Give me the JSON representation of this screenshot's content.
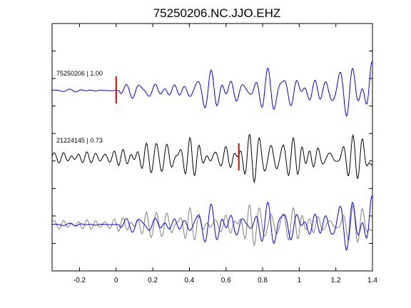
{
  "chart_data": {
    "type": "line",
    "title": "75250206.NC.JJO.EHZ",
    "xlabel": "",
    "ylabel": "",
    "xlim": [
      -0.35,
      1.4
    ],
    "xticks": [
      -0.2,
      0,
      0.2,
      0.4,
      0.6,
      0.8,
      1,
      1.2,
      1.4
    ],
    "xtick_labels": [
      "-0.2",
      "0",
      "0.2",
      "0.4",
      "0.6",
      "0.8",
      "1",
      "1.2",
      "1.4"
    ],
    "y_ticks_unlabeled": 8,
    "grid": false,
    "traces": [
      {
        "label": "75250206 | 1.00",
        "color": "#0000ff",
        "pick_time": 0.0
      },
      {
        "label": "21224145 | 0.73",
        "color": "#000000",
        "pick_time": 0.67
      }
    ],
    "overlay": {
      "colors": [
        "#808080",
        "#0000ff"
      ]
    },
    "pick_color": "#e00000"
  }
}
